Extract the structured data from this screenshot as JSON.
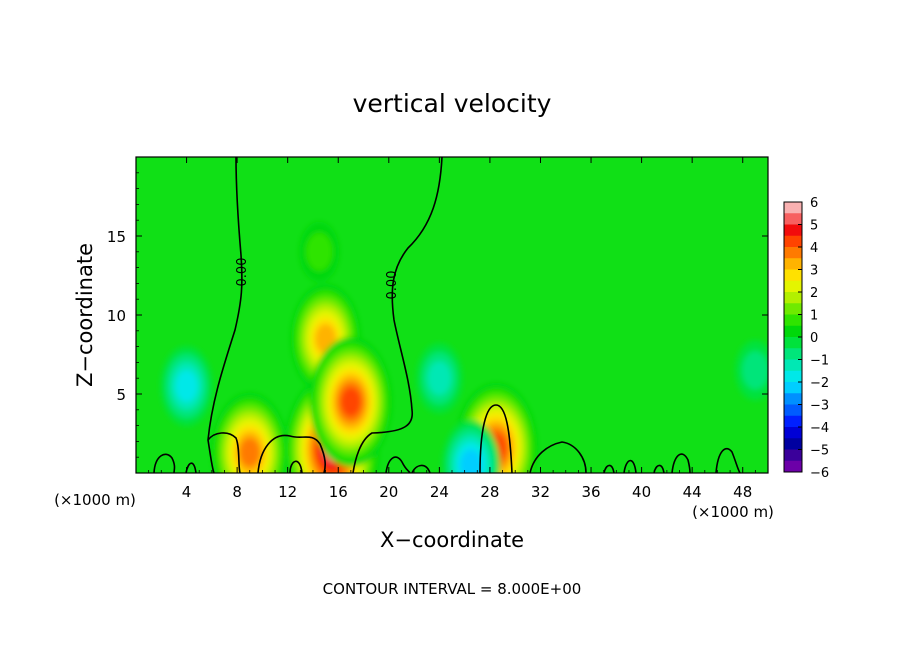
{
  "chart_data": {
    "type": "heatmap",
    "title": "vertical velocity",
    "xlabel": "X−coordinate",
    "ylabel": "Z−coordinate",
    "x_unit": "(×1000 m)",
    "y_unit": "(×1000 m)",
    "xlim": [
      0,
      50
    ],
    "ylim": [
      0,
      20
    ],
    "x_ticks": [
      "4",
      "8",
      "12",
      "16",
      "20",
      "24",
      "28",
      "32",
      "36",
      "40",
      "44",
      "48"
    ],
    "y_ticks": [
      "5",
      "10",
      "15"
    ],
    "footer": "CONTOUR INTERVAL = 8.000E+00",
    "contour_label": "0.00",
    "colorbar": {
      "ticks": [
        "6",
        "5",
        "4",
        "3",
        "2",
        "1",
        "0",
        "−1",
        "−2",
        "−3",
        "−4",
        "−5",
        "−6"
      ],
      "colors": [
        "#f9b1b1",
        "#f76060",
        "#f20c0c",
        "#ff4400",
        "#ff7a00",
        "#ffb300",
        "#ffe100",
        "#e4f500",
        "#b3f000",
        "#6fea00",
        "#2fe400",
        "#00d80a",
        "#00e23c",
        "#00e57a",
        "#00e8b4",
        "#00e8e8",
        "#00ceff",
        "#0090ff",
        "#005cff",
        "#0020ff",
        "#0000d6",
        "#0000a0",
        "#3a009a",
        "#6c00a8"
      ]
    },
    "features": [
      {
        "x": 15.0,
        "z": 8.5,
        "value": 3.5
      },
      {
        "x": 15.5,
        "z": 1.5,
        "value": 5.5
      },
      {
        "x": 17.0,
        "z": 4.5,
        "value": 4.5
      },
      {
        "x": 9.0,
        "z": 1.3,
        "value": 4.0
      },
      {
        "x": 28.5,
        "z": 1.6,
        "value": 4.5
      },
      {
        "x": 4.0,
        "z": 5.5,
        "value": -2.0
      },
      {
        "x": 24.0,
        "z": 6.0,
        "value": -1.5
      },
      {
        "x": 26.5,
        "z": 0.5,
        "value": -2.5
      },
      {
        "x": 49.0,
        "z": 6.5,
        "value": -1.0
      },
      {
        "x": 14.5,
        "z": 14.0,
        "value": 1.0
      }
    ]
  }
}
